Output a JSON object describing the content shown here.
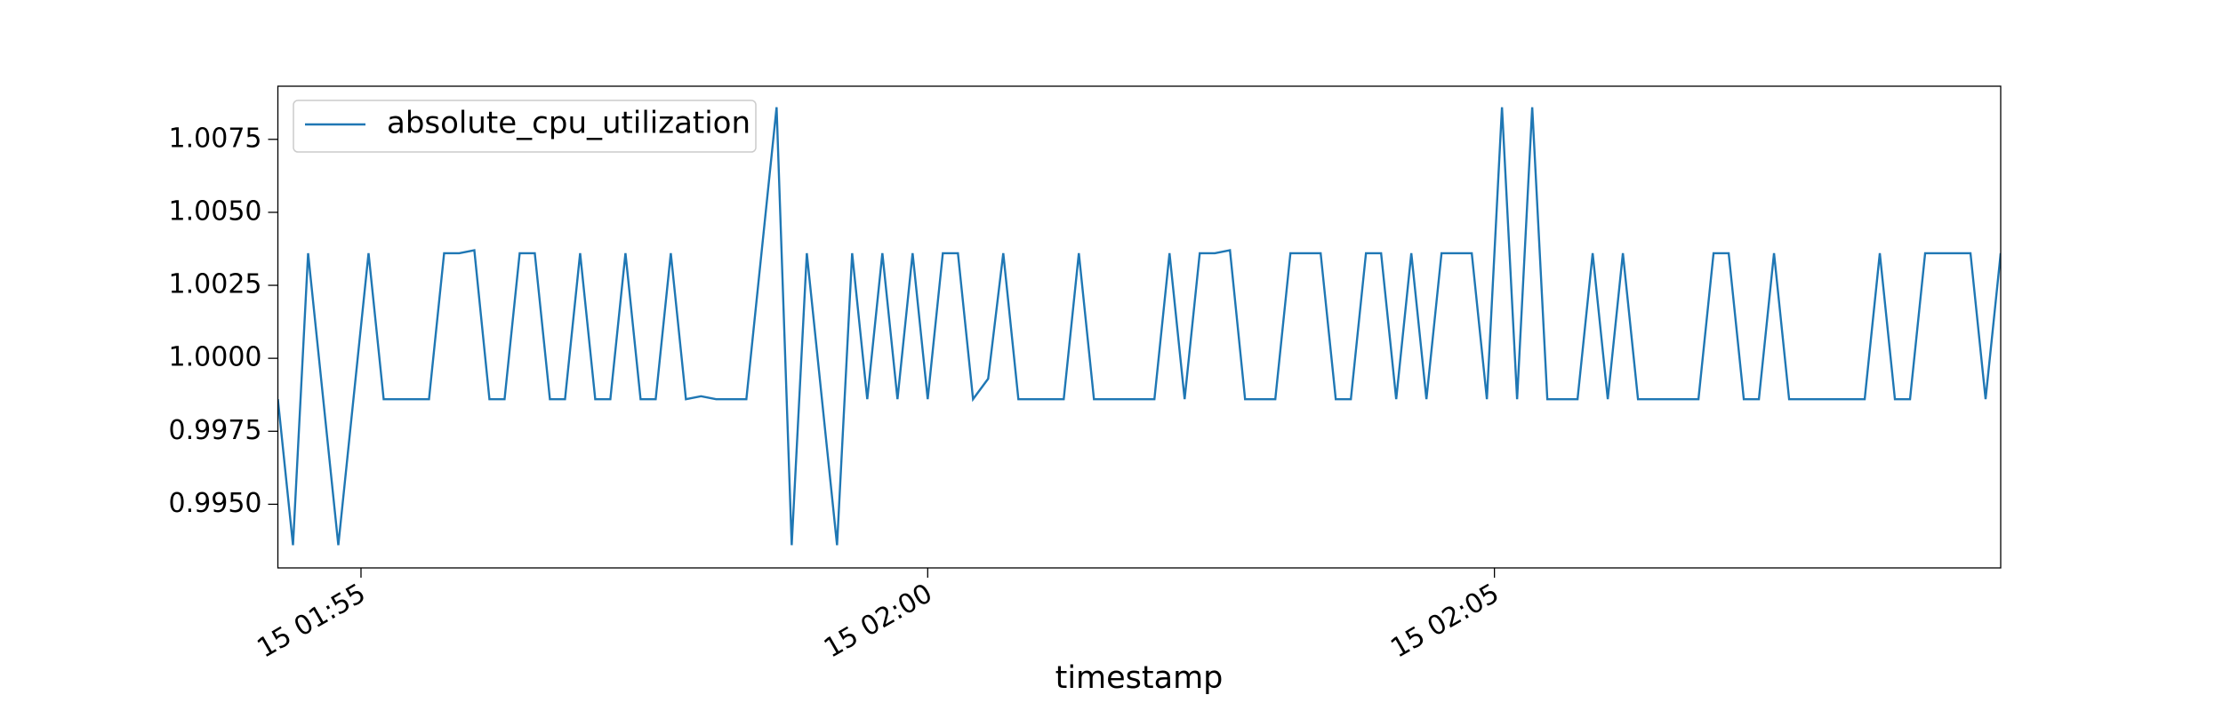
{
  "chart_data": {
    "type": "line",
    "xlabel": "timestamp",
    "x": [
      "15 01:54:16",
      "15 01:54:24",
      "15 01:54:32",
      "15 01:54:40",
      "15 01:54:48",
      "15 01:54:56",
      "15 01:55:04",
      "15 01:55:12",
      "15 01:55:20",
      "15 01:55:28",
      "15 01:55:36",
      "15 01:55:44",
      "15 01:55:52",
      "15 01:56:00",
      "15 01:56:08",
      "15 01:56:16",
      "15 01:56:24",
      "15 01:56:32",
      "15 01:56:40",
      "15 01:56:48",
      "15 01:56:56",
      "15 01:57:04",
      "15 01:57:12",
      "15 01:57:20",
      "15 01:57:28",
      "15 01:57:36",
      "15 01:57:44",
      "15 01:57:52",
      "15 01:58:00",
      "15 01:58:08",
      "15 01:58:16",
      "15 01:58:24",
      "15 01:58:32",
      "15 01:58:40",
      "15 01:58:48",
      "15 01:58:56",
      "15 01:59:04",
      "15 01:59:12",
      "15 01:59:20",
      "15 01:59:28",
      "15 01:59:36",
      "15 01:59:44",
      "15 01:59:52",
      "15 02:00:00",
      "15 02:00:08",
      "15 02:00:16",
      "15 02:00:24",
      "15 02:00:32",
      "15 02:00:40",
      "15 02:00:48",
      "15 02:00:56",
      "15 02:01:04",
      "15 02:01:12",
      "15 02:01:20",
      "15 02:01:28",
      "15 02:01:36",
      "15 02:01:44",
      "15 02:01:52",
      "15 02:02:00",
      "15 02:02:08",
      "15 02:02:16",
      "15 02:02:24",
      "15 02:02:32",
      "15 02:02:40",
      "15 02:02:48",
      "15 02:02:56",
      "15 02:03:04",
      "15 02:03:12",
      "15 02:03:20",
      "15 02:03:28",
      "15 02:03:36",
      "15 02:03:44",
      "15 02:03:52",
      "15 02:04:00",
      "15 02:04:08",
      "15 02:04:16",
      "15 02:04:24",
      "15 02:04:32",
      "15 02:04:40",
      "15 02:04:48",
      "15 02:04:56",
      "15 02:05:04",
      "15 02:05:12",
      "15 02:05:20",
      "15 02:05:28",
      "15 02:05:36",
      "15 02:05:44",
      "15 02:05:52",
      "15 02:06:00",
      "15 02:06:08",
      "15 02:06:16",
      "15 02:06:24",
      "15 02:06:32",
      "15 02:06:40",
      "15 02:06:48",
      "15 02:06:56",
      "15 02:07:04",
      "15 02:07:12",
      "15 02:07:20",
      "15 02:07:28",
      "15 02:07:36",
      "15 02:07:44",
      "15 02:07:52",
      "15 02:08:00",
      "15 02:08:08",
      "15 02:08:16",
      "15 02:08:24",
      "15 02:08:32",
      "15 02:08:40",
      "15 02:08:48",
      "15 02:08:56",
      "15 02:09:04",
      "15 02:09:12",
      "15 02:09:20",
      "15 02:09:28"
    ],
    "series": [
      {
        "name": "absolute_cpu_utilization",
        "color": "#1f77b4",
        "values": [
          0.9986,
          0.9936,
          1.0036,
          0.9986,
          0.9936,
          0.9986,
          1.0036,
          0.9986,
          0.9986,
          0.9986,
          0.9986,
          1.0036,
          1.0036,
          1.0037,
          0.9986,
          0.9986,
          1.0036,
          1.0036,
          0.9986,
          0.9986,
          1.0036,
          0.9986,
          0.9986,
          1.0036,
          0.9986,
          0.9986,
          1.0036,
          0.9986,
          0.9987,
          0.9986,
          0.9986,
          0.9986,
          1.0036,
          1.0086,
          0.9936,
          1.0036,
          0.9986,
          0.9936,
          1.0036,
          0.9986,
          1.0036,
          0.9986,
          1.0036,
          0.9986,
          1.0036,
          1.0036,
          0.9986,
          0.9993,
          1.0036,
          0.9986,
          0.9986,
          0.9986,
          0.9986,
          1.0036,
          0.9986,
          0.9986,
          0.9986,
          0.9986,
          0.9986,
          1.0036,
          0.9986,
          1.0036,
          1.0036,
          1.0037,
          0.9986,
          0.9986,
          0.9986,
          1.0036,
          1.0036,
          1.0036,
          0.9986,
          0.9986,
          1.0036,
          1.0036,
          0.9986,
          1.0036,
          0.9986,
          1.0036,
          1.0036,
          1.0036,
          0.9986,
          1.0086,
          0.9986,
          1.0086,
          0.9986,
          0.9986,
          0.9986,
          1.0036,
          0.9986,
          1.0036,
          0.9986,
          0.9986,
          0.9986,
          0.9986,
          0.9986,
          1.0036,
          1.0036,
          0.9986,
          0.9986,
          1.0036,
          0.9986,
          0.9986,
          0.9986,
          0.9986,
          0.9986,
          0.9986,
          1.0036,
          0.9986,
          0.9986,
          1.0036,
          1.0036,
          1.0036,
          1.0036,
          0.9986,
          1.0036
        ]
      }
    ],
    "xlim": [
      "15 01:54:16",
      "15 02:09:28"
    ],
    "xticks": [
      {
        "value": "15 01:55:00",
        "label": "15 01:55"
      },
      {
        "value": "15 02:00:00",
        "label": "15 02:00"
      },
      {
        "value": "15 02:05:00",
        "label": "15 02:05"
      }
    ],
    "ylim": [
      0.99282,
      1.00932
    ],
    "yticks": [
      {
        "value": 0.995,
        "label": "0.9950"
      },
      {
        "value": 0.9975,
        "label": "0.9975"
      },
      {
        "value": 1.0,
        "label": "1.0000"
      },
      {
        "value": 1.0025,
        "label": "1.0025"
      },
      {
        "value": 1.005,
        "label": "1.0050"
      },
      {
        "value": 1.0075,
        "label": "1.0075"
      }
    ],
    "grid": false,
    "legend": "upper left"
  }
}
